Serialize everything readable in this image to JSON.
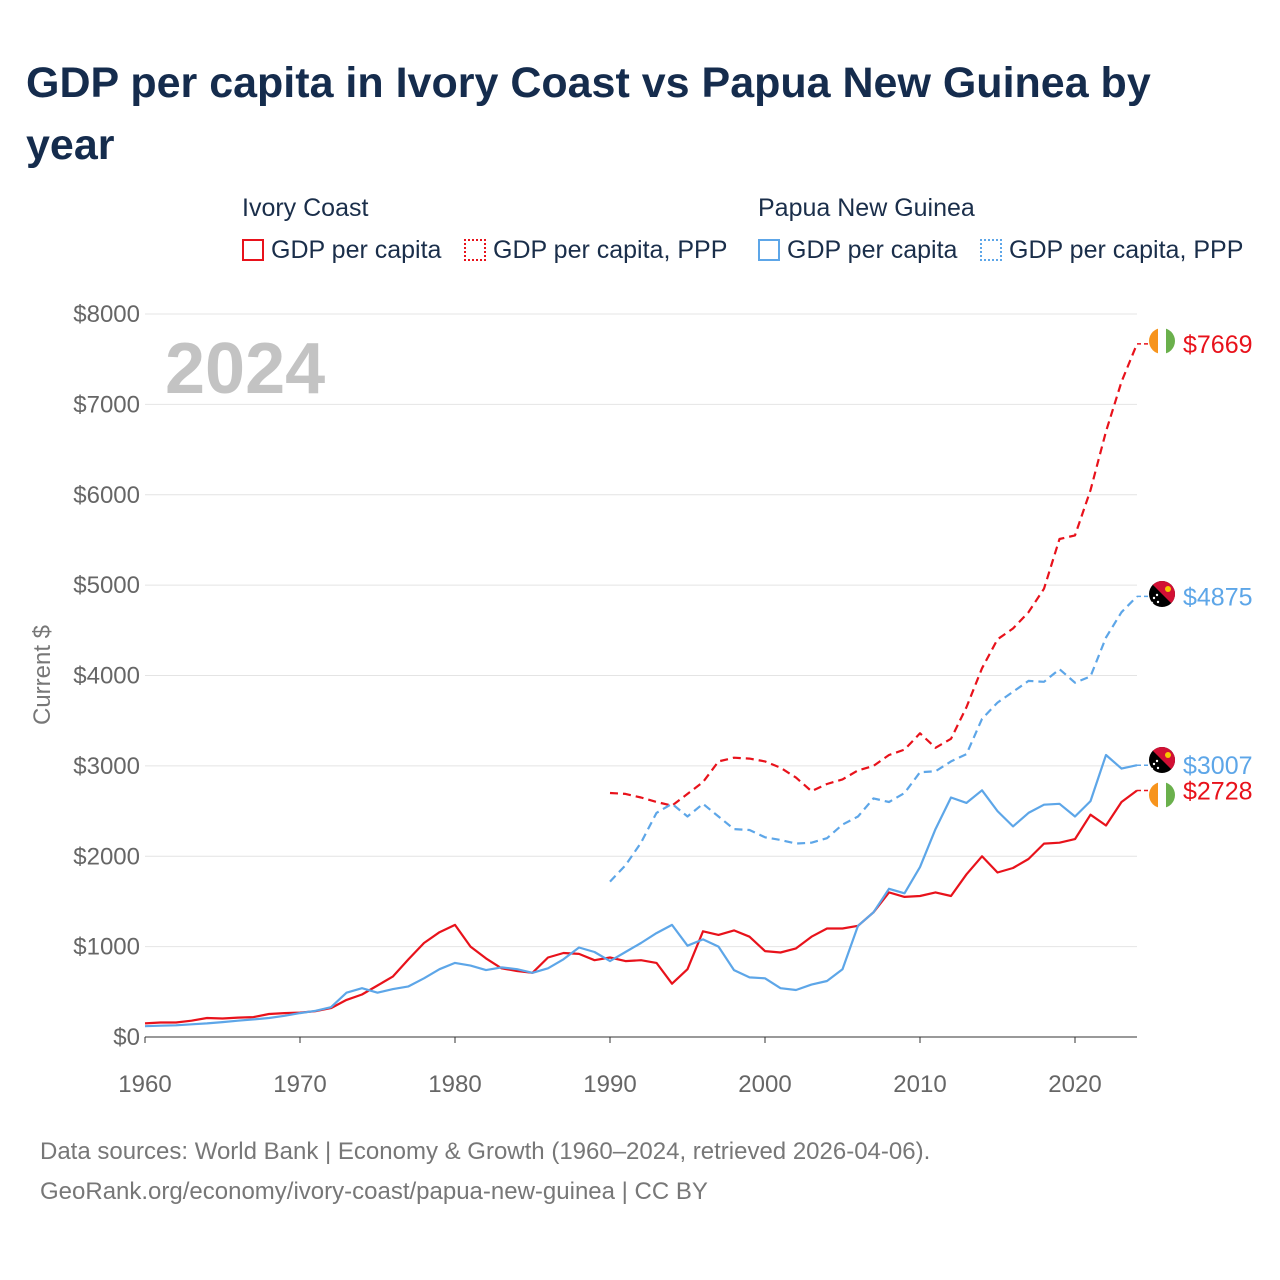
{
  "title": "GDP per capita in Ivory Coast vs Papua New Guinea by year",
  "legend": {
    "groups": [
      {
        "name": "Ivory Coast",
        "items": [
          {
            "label": "GDP per capita",
            "style": "solid",
            "color": "#e8121b"
          },
          {
            "label": "GDP per capita, PPP",
            "style": "dotted",
            "color": "#e8121b"
          }
        ]
      },
      {
        "name": "Papua New Guinea",
        "items": [
          {
            "label": "GDP per capita",
            "style": "solid",
            "color": "#5da6e8"
          },
          {
            "label": "GDP per capita, PPP",
            "style": "dotted",
            "color": "#5da6e8"
          }
        ]
      }
    ]
  },
  "year_watermark": "2024",
  "footer": {
    "line1": "Data sources: World Bank | Economy & Growth (1960–2024, retrieved 2026-04-06).",
    "line2": "GeoRank.org/economy/ivory-coast/papua-new-guinea | CC BY"
  },
  "chart_data": {
    "type": "line",
    "title": "GDP per capita in Ivory Coast vs Papua New Guinea by year",
    "xlabel": "",
    "ylabel": "Current $",
    "xlim": [
      1960,
      2024
    ],
    "ylim": [
      0,
      8000
    ],
    "x_ticks": [
      1960,
      1970,
      1980,
      1990,
      2000,
      2010,
      2020
    ],
    "y_ticks": [
      0,
      1000,
      2000,
      3000,
      4000,
      5000,
      6000,
      7000,
      8000
    ],
    "y_tick_labels": [
      "$0",
      "$1000",
      "$2000",
      "$3000",
      "$4000",
      "$5000",
      "$6000",
      "$7000",
      "$8000"
    ],
    "grid": true,
    "series": [
      {
        "name": "Ivory Coast — GDP per capita",
        "color": "#e8121b",
        "dashed": false,
        "start_year": 1960,
        "end_label": "$2728",
        "flag": "ivory-coast",
        "values": [
          150,
          160,
          160,
          180,
          210,
          205,
          215,
          220,
          255,
          265,
          270,
          285,
          320,
          410,
          470,
          570,
          670,
          860,
          1040,
          1160,
          1240,
          1000,
          870,
          760,
          730,
          710,
          880,
          930,
          920,
          850,
          880,
          840,
          850,
          820,
          590,
          750,
          1170,
          1130,
          1180,
          1110,
          950,
          935,
          980,
          1110,
          1200,
          1200,
          1230,
          1380,
          1600,
          1550,
          1560,
          1600,
          1560,
          1800,
          2000,
          1820,
          1870,
          1970,
          2140,
          2150,
          2190,
          2460,
          2340,
          2600,
          2728
        ]
      },
      {
        "name": "Ivory Coast — GDP per capita, PPP",
        "color": "#e8121b",
        "dashed": true,
        "start_year": 1990,
        "end_label": "$7669",
        "flag": "ivory-coast",
        "values": [
          2700,
          2690,
          2650,
          2600,
          2560,
          2690,
          2820,
          3050,
          3090,
          3080,
          3050,
          2980,
          2870,
          2720,
          2800,
          2850,
          2950,
          3000,
          3120,
          3180,
          3360,
          3200,
          3300,
          3650,
          4080,
          4400,
          4520,
          4700,
          4960,
          5510,
          5550,
          6050,
          6700,
          7250,
          7669
        ]
      },
      {
        "name": "Papua New Guinea — GDP per capita",
        "color": "#5da6e8",
        "dashed": false,
        "start_year": 1960,
        "end_label": "$3007",
        "flag": "papua-new-guinea",
        "values": [
          120,
          125,
          130,
          140,
          150,
          165,
          180,
          195,
          210,
          235,
          265,
          290,
          330,
          490,
          540,
          490,
          530,
          560,
          650,
          750,
          820,
          790,
          740,
          770,
          750,
          710,
          760,
          860,
          990,
          940,
          840,
          940,
          1040,
          1150,
          1240,
          1010,
          1080,
          1000,
          740,
          660,
          650,
          540,
          520,
          580,
          620,
          750,
          1230,
          1380,
          1640,
          1590,
          1880,
          2300,
          2650,
          2590,
          2730,
          2500,
          2330,
          2480,
          2570,
          2580,
          2440,
          2610,
          3120,
          2970,
          3007
        ]
      },
      {
        "name": "Papua New Guinea — GDP per capita, PPP",
        "color": "#5da6e8",
        "dashed": true,
        "start_year": 1990,
        "end_label": "$4875",
        "flag": "papua-new-guinea",
        "values": [
          1720,
          1900,
          2150,
          2480,
          2580,
          2440,
          2580,
          2440,
          2300,
          2290,
          2210,
          2180,
          2140,
          2150,
          2200,
          2350,
          2440,
          2640,
          2600,
          2700,
          2930,
          2940,
          3050,
          3130,
          3520,
          3700,
          3820,
          3940,
          3930,
          4070,
          3920,
          3990,
          4420,
          4700,
          4875
        ]
      }
    ]
  }
}
